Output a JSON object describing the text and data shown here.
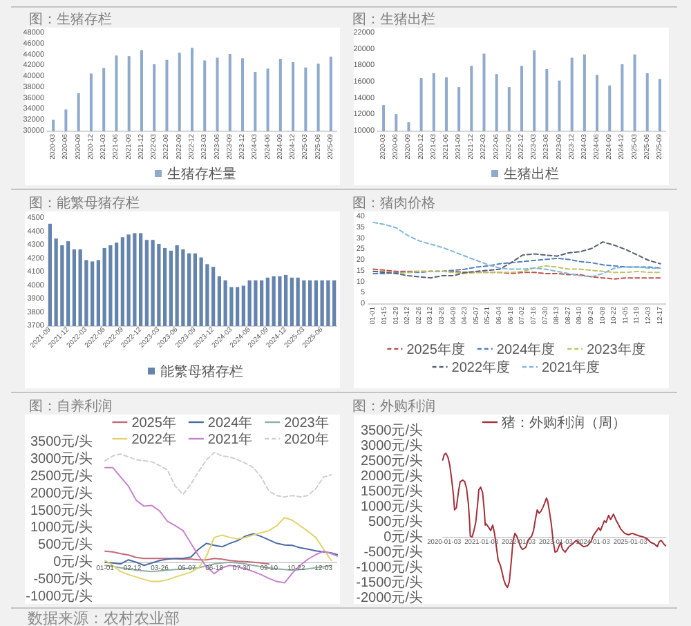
{
  "chart_data": [
    {
      "type": "bar",
      "title": "图：生猪存栏",
      "categories": [
        "2020-03",
        "2020-06",
        "2020-09",
        "2020-12",
        "2021-03",
        "2021-06",
        "2021-09",
        "2021-12",
        "2022-03",
        "2022-06",
        "2022-09",
        "2022-12",
        "2023-03",
        "2023-06",
        "2023-09",
        "2023-12",
        "2024-03",
        "2024-06",
        "2024-09",
        "2024-12",
        "2025-03",
        "2025-06",
        "2025-09"
      ],
      "series": [
        {
          "name": "生猪存栏量",
          "color": "#8faacc",
          "values": [
            32100,
            34000,
            37000,
            40600,
            41600,
            43900,
            43800,
            44900,
            42300,
            43100,
            44400,
            45300,
            43000,
            43500,
            44200,
            43400,
            40900,
            41500,
            43300,
            42700,
            41700,
            42400,
            43700
          ]
        }
      ],
      "ylim": [
        30000,
        48000
      ],
      "yticks": [
        30000,
        32000,
        34000,
        36000,
        38000,
        40000,
        42000,
        44000,
        46000,
        48000
      ],
      "legend": "bottom"
    },
    {
      "type": "bar",
      "title": "图：生猪出栏",
      "categories": [
        "2020-03",
        "2020-06",
        "2020-09",
        "2020-12",
        "2021-03",
        "2021-06",
        "2021-09",
        "2021-12",
        "2022-03",
        "2022-06",
        "2022-09",
        "2022-12",
        "2023-03",
        "2023-06",
        "2023-09",
        "2023-12",
        "2024-03",
        "2024-06",
        "2024-09",
        "2024-12",
        "2025-03",
        "2025-06",
        "2025-09"
      ],
      "series": [
        {
          "name": "生猪出栏",
          "color": "#8faacc",
          "values": [
            13200,
            12100,
            11100,
            16500,
            17100,
            16600,
            15400,
            18000,
            19500,
            17000,
            15400,
            18000,
            19900,
            17600,
            16200,
            19000,
            19400,
            16900,
            15600,
            18200,
            19400,
            17100,
            16400
          ]
        }
      ],
      "ylim": [
        10000,
        22000
      ],
      "yticks": [
        10000,
        12000,
        14000,
        16000,
        18000,
        20000,
        22000
      ],
      "legend": "bottom"
    },
    {
      "type": "bar",
      "title": "图：能繁母猪存栏",
      "categories": [
        "2021-09",
        null,
        null,
        "2021-12",
        null,
        null,
        "2022-03",
        null,
        null,
        "2022-06",
        null,
        null,
        "2022-09",
        null,
        null,
        "2022-12",
        null,
        null,
        "2023-03",
        null,
        null,
        "2023-06",
        null,
        null,
        "2023-09",
        null,
        null,
        "2023-12",
        null,
        null,
        "2024-03",
        null,
        null,
        "2024-06",
        null,
        null,
        "2024-09",
        null,
        null,
        "2024-12",
        null,
        null,
        "2025-03",
        null,
        null,
        "2025-06",
        null,
        null
      ],
      "series": [
        {
          "name": "能繁母猪存栏",
          "color": "#6483ad",
          "values": [
            4460,
            4350,
            4300,
            4330,
            4270,
            4270,
            4190,
            4180,
            4190,
            4280,
            4300,
            4320,
            4360,
            4380,
            4390,
            4390,
            4340,
            4340,
            4310,
            4280,
            4260,
            4300,
            4270,
            4240,
            4240,
            4210,
            4160,
            4140,
            4070,
            4040,
            3990,
            3990,
            4000,
            4040,
            4040,
            4040,
            4060,
            4070,
            4070,
            4080,
            4060,
            4060,
            4040,
            4040,
            4040,
            4040,
            4040,
            4040
          ]
        }
      ],
      "ylim": [
        3700,
        4500
      ],
      "yticks": [
        3700,
        3800,
        3900,
        4000,
        4100,
        4200,
        4300,
        4400,
        4500
      ],
      "legend": "bottom"
    },
    {
      "type": "line",
      "title": "图：猪肉价格",
      "categories": [
        "01-01",
        "01-15",
        "01-29",
        "02-12",
        "02-26",
        "03-12",
        "03-26",
        "04-09",
        "04-23",
        "05-07",
        "05-21",
        "06-04",
        "06-18",
        "07-02",
        "07-16",
        "07-30",
        "08-13",
        "08-27",
        "09-10",
        "09-24",
        "10-08",
        "10-22",
        "11-05",
        "11-19",
        "12-03",
        "12-17"
      ],
      "series": [
        {
          "name": "2025年度",
          "color": "#c0504d",
          "values": [
            16,
            15.5,
            15,
            15,
            15,
            15,
            15,
            15,
            14.5,
            14.5,
            14.5,
            14.5,
            14,
            14.5,
            14.5,
            14,
            14,
            13.5,
            13.5,
            12.5,
            12,
            11.5,
            12,
            12,
            12,
            12
          ]
        },
        {
          "name": "2024年度",
          "color": "#4f81bd",
          "values": [
            14,
            14,
            14.5,
            14.5,
            14.5,
            15,
            15,
            15.5,
            16,
            17,
            17.5,
            18.5,
            19,
            19.5,
            20,
            20.5,
            21,
            20.5,
            19.5,
            19,
            18,
            17.5,
            17,
            17,
            17,
            16.5
          ]
        },
        {
          "name": "2023年度",
          "color": "#bcc463",
          "values": [
            15,
            15,
            14,
            14.5,
            15,
            15,
            15,
            14.5,
            14,
            14.5,
            14.5,
            14.5,
            14.5,
            15,
            16.5,
            17.5,
            17,
            16,
            16,
            15.5,
            15,
            14.5,
            14.5,
            15,
            14.5,
            14.5
          ]
        },
        {
          "name": "2022年度",
          "color": "#5b5f75",
          "values": [
            15,
            14.5,
            14,
            13,
            12.5,
            12,
            13,
            13,
            14.5,
            15,
            15.5,
            16,
            19,
            22.5,
            23,
            22.5,
            22,
            23.5,
            24,
            25.5,
            28.5,
            27,
            25,
            22.5,
            20,
            18.5
          ]
        },
        {
          "name": "2021年度",
          "color": "#7fb5dd",
          "values": [
            37.5,
            36.5,
            35,
            31.5,
            29,
            27.5,
            26,
            24,
            22,
            20,
            18,
            16.5,
            16,
            16,
            16.5,
            16,
            15,
            14,
            13,
            12.5,
            14,
            16.5,
            17,
            17,
            16.5,
            16.5
          ]
        }
      ],
      "ylim": [
        0,
        40
      ],
      "yticks": [
        0,
        5,
        10,
        15,
        20,
        25,
        30,
        35,
        40
      ],
      "legend": "bottom",
      "line_style": "dashed"
    },
    {
      "type": "line",
      "title": "图：自养利润",
      "x": [
        "--01-01",
        "--01-13",
        "--01-25",
        "--02-06",
        "--02-18",
        "--03-02",
        "--03-14",
        "--03-26",
        "--04-07",
        "--04-19",
        "--05-01",
        "--05-13",
        "--05-25",
        "--06-06",
        "--06-18",
        "--06-30",
        "--07-12",
        "--07-24",
        "--08-05",
        "--08-17",
        "--08-29",
        "--09-10",
        "--09-22",
        "--10-04",
        "--10-16",
        "--10-28",
        "--11-09",
        "--11-21",
        "--12-03",
        "--12-15",
        "--12-24"
      ],
      "series": [
        {
          "name": "2025年",
          "color": "#c46a78",
          "values": [
            330,
            310,
            260,
            220,
            150,
            120,
            120,
            120,
            120,
            110,
            100,
            100,
            80,
            80,
            120,
            100,
            60,
            40,
            30,
            10,
            -10,
            -40,
            null,
            null,
            null,
            null,
            null,
            null,
            null,
            null,
            null
          ]
        },
        {
          "name": "2024年",
          "color": "#4a6aa5",
          "values": [
            10,
            -10,
            -40,
            80,
            10,
            -80,
            -10,
            60,
            100,
            120,
            120,
            160,
            390,
            560,
            500,
            460,
            560,
            640,
            770,
            840,
            760,
            660,
            560,
            510,
            500,
            430,
            390,
            340,
            310,
            280,
            230
          ]
        },
        {
          "name": "2023年",
          "color": "#8fb0a0",
          "values": [
            -80,
            -110,
            -150,
            -180,
            -220,
            -240,
            -260,
            -240,
            -220,
            -200,
            -180,
            -160,
            -150,
            -90,
            -40,
            -10,
            10,
            -10,
            -40,
            -80,
            -120,
            -150,
            -180,
            -200,
            -220,
            -200,
            -180,
            -150,
            -120,
            -80,
            null
          ]
        },
        {
          "name": "2022年",
          "color": "#e1d36a",
          "values": [
            60,
            -80,
            -260,
            -350,
            -420,
            -490,
            -550,
            -550,
            -500,
            -420,
            -350,
            -280,
            -150,
            190,
            730,
            800,
            730,
            690,
            730,
            800,
            870,
            930,
            1070,
            1310,
            1230,
            1070,
            910,
            730,
            390,
            60,
            null
          ]
        },
        {
          "name": "2021年",
          "color": "#c77fd0",
          "values": [
            2760,
            2760,
            2490,
            2220,
            1810,
            1640,
            1660,
            1500,
            1200,
            1070,
            930,
            560,
            190,
            -120,
            -320,
            -150,
            -80,
            -120,
            -180,
            -260,
            -350,
            -460,
            -550,
            -590,
            -310,
            -80,
            100,
            230,
            330,
            260,
            190
          ]
        },
        {
          "name": "2020年",
          "color": "#cfcfcf",
          "line_style": "dashed",
          "values": [
            2960,
            3100,
            3160,
            3070,
            2990,
            2960,
            2930,
            2820,
            2690,
            2220,
            1990,
            2280,
            2650,
            2990,
            3200,
            3100,
            3070,
            2990,
            2890,
            2760,
            2490,
            2080,
            1950,
            1910,
            1950,
            1910,
            1950,
            2150,
            2490,
            2550,
            null
          ]
        }
      ],
      "xlim": [
        "--01-01",
        "--12-24"
      ],
      "xticks": [
        {
          "value": "--01-01",
          "label": "01-01"
        },
        {
          "value": "--02-12",
          "label": "02-12"
        },
        {
          "value": "--03-26",
          "label": "03-26"
        },
        {
          "value": "--05-07",
          "label": "05-07"
        },
        {
          "value": "--06-18",
          "label": "06-18"
        },
        {
          "value": "--07-30",
          "label": "07-30"
        },
        {
          "value": "--09-10",
          "label": "09-10"
        },
        {
          "value": "--10-22",
          "label": "10-22"
        },
        {
          "value": "--12-03",
          "label": "12-03"
        }
      ],
      "ylim": [
        -1000,
        3500
      ],
      "yticks": [
        {
          "value": -1000,
          "label": "-1000元/头"
        },
        {
          "value": -500,
          "label": "-500元/头"
        },
        {
          "value": 0,
          "label": "0元/头"
        },
        {
          "value": 500,
          "label": "500元/头"
        },
        {
          "value": 1000,
          "label": "1000元/头"
        },
        {
          "value": 1500,
          "label": "1500元/头"
        },
        {
          "value": 2000,
          "label": "2000元/头"
        },
        {
          "value": 2500,
          "label": "2500元/头"
        },
        {
          "value": 3000,
          "label": "3000元/头"
        },
        {
          "value": 3500,
          "label": "3500元/头"
        }
      ],
      "legend": "top",
      "annotations": [
        "数据来源：农村农业部"
      ]
    },
    {
      "type": "line",
      "title": "图：外购利润",
      "series": [
        {
          "name": "猪：外购利润（周）",
          "color": "#a3303a",
          "x": [
            "2019-12-20",
            "2020-01-03",
            "2020-01-21",
            "2020-02-09",
            "2020-02-27",
            "2020-03-16",
            "2020-04-03",
            "2020-04-14",
            "2020-05-02",
            "2020-05-21",
            "2020-06-08",
            "2020-07-04",
            "2020-07-22",
            "2020-08-09",
            "2020-08-27",
            "2020-09-07",
            "2020-09-15",
            "2020-10-03",
            "2020-10-21",
            "2020-11-08",
            "2020-11-27",
            "2020-12-08",
            "2020-12-26",
            "2021-01-14",
            "2021-01-29",
            "2021-02-09",
            "2021-02-19",
            "2021-03-17",
            "2021-04-04",
            "2021-04-23",
            "2021-05-11",
            "2021-05-29",
            "2021-06-16",
            "2021-07-04",
            "2021-07-22",
            "2021-08-09",
            "2021-08-27",
            "2021-09-15",
            "2021-10-03",
            "2021-10-21",
            "2021-11-08",
            "2021-11-27",
            "2021-12-15",
            "2022-01-03",
            "2022-01-21",
            "2022-02-09",
            "2022-02-27",
            "2022-03-17",
            "2022-04-04",
            "2022-05-11",
            "2022-05-29",
            "2022-06-16",
            "2022-07-04",
            "2022-07-22",
            "2022-08-09",
            "2022-08-27",
            "2022-09-15",
            "2022-10-03",
            "2022-10-14",
            "2022-11-01",
            "2022-11-19",
            "2022-12-08",
            "2022-12-26",
            "2023-01-14",
            "2023-02-01",
            "2023-02-19",
            "2023-03-10",
            "2023-04-04",
            "2023-05-11",
            "2023-06-16",
            "2023-07-22",
            "2023-08-27",
            "2023-10-03",
            "2023-11-08",
            "2023-12-15",
            "2024-01-03",
            "2024-01-21",
            "2024-02-27",
            "2024-03-16",
            "2024-04-22",
            "2024-05-10",
            "2024-06-04",
            "2024-06-23",
            "2024-07-21",
            "2024-08-19",
            "2024-10-03",
            "2024-11-08",
            "2024-12-15",
            "2025-01-21",
            "2025-02-27",
            "2025-04-04",
            "2025-05-11",
            "2025-06-16",
            "2025-07-22",
            "2025-08-27",
            "2025-09-25",
            "2025-10-14",
            "2025-11-01",
            "2025-11-27",
            "2025-12-15"
          ],
          "values": [
            2550,
            2730,
            2770,
            2640,
            2380,
            1930,
            1390,
            910,
            980,
            1480,
            1840,
            1890,
            1840,
            1630,
            1130,
            590,
            50,
            20,
            230,
            500,
            1130,
            1570,
            1660,
            1480,
            950,
            410,
            450,
            320,
            230,
            410,
            140,
            -300,
            -750,
            -880,
            -1110,
            -1380,
            -1550,
            -1640,
            -1460,
            -840,
            -130,
            140,
            50,
            -130,
            -300,
            -390,
            -360,
            -300,
            -90,
            50,
            230,
            590,
            910,
            800,
            860,
            980,
            1130,
            1300,
            1210,
            860,
            450,
            -130,
            -480,
            -450,
            -300,
            -160,
            -390,
            -480,
            -300,
            -210,
            -90,
            -210,
            -300,
            -270,
            -130,
            50,
            140,
            320,
            230,
            550,
            500,
            730,
            590,
            770,
            550,
            270,
            140,
            90,
            140,
            90,
            50,
            20,
            -40,
            -160,
            -210,
            -300,
            -130,
            -90,
            -210,
            -270
          ]
        }
      ],
      "xlim": [
        "2019-12-15",
        "2025-12-20"
      ],
      "xticks": [
        "2020-01-03",
        "2021-01-03",
        "2022-01-03",
        "2023-01-03",
        "2024-01-03",
        "2025-01-03"
      ],
      "ylim": [
        -2000,
        3500
      ],
      "yticks": [
        {
          "value": -2000,
          "label": "-2000元/头"
        },
        {
          "value": -1500,
          "label": "-1500元/头"
        },
        {
          "value": -1000,
          "label": "-1000元/头"
        },
        {
          "value": -500,
          "label": "-500元/头"
        },
        {
          "value": 0,
          "label": "0元/头"
        },
        {
          "value": 500,
          "label": "500元/头"
        },
        {
          "value": 1000,
          "label": "1000元/头"
        },
        {
          "value": 1500,
          "label": "1500元/头"
        },
        {
          "value": 2000,
          "label": "2000元/头"
        },
        {
          "value": 2500,
          "label": "2500元/头"
        },
        {
          "value": 3000,
          "label": "3000元/头"
        },
        {
          "value": 3500,
          "label": "3500元/头"
        }
      ],
      "legend": "top"
    }
  ]
}
